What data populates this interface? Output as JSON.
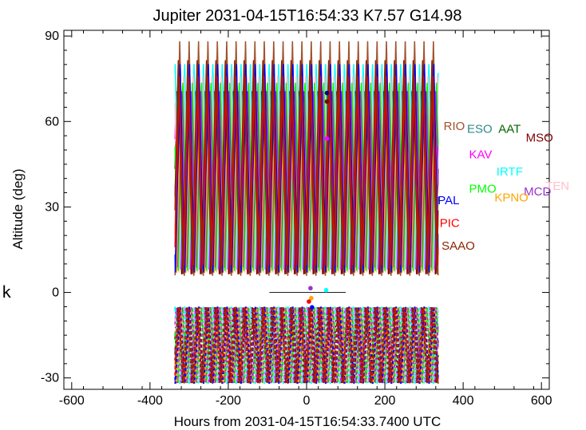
{
  "chart_data": {
    "type": "line",
    "title": "Jupiter 2031-04-15T16:54:33  K7.57  G14.98",
    "xlabel": "Hours from 2031-04-15T16:54:33.7400 UTC",
    "ylabel": "Altitude (deg)",
    "xlim": [
      -620,
      620
    ],
    "ylim": [
      -34,
      92
    ],
    "xticks": [
      -600,
      -400,
      -200,
      0,
      200,
      400,
      600
    ],
    "yticks": [
      -30,
      0,
      30,
      60,
      90
    ],
    "grid": false,
    "series_span_hours": [
      -336,
      336
    ],
    "period_hours": 24,
    "negative_altitude_floor": -32,
    "observatories": [
      {
        "name": "RIO",
        "color": "#a0522d",
        "label_x": 350,
        "label_y": 57
      },
      {
        "name": "ESO",
        "color": "#2e8b8b",
        "label_x": 410,
        "label_y": 56
      },
      {
        "name": "AAT",
        "color": "#006400",
        "label_x": 490,
        "label_y": 56
      },
      {
        "name": "MSO",
        "color": "#800000",
        "label_x": 560,
        "label_y": 53
      },
      {
        "name": "KAV",
        "color": "#ff00ff",
        "label_x": 415,
        "label_y": 47
      },
      {
        "name": "IRTF",
        "color": "#00ffff",
        "label_x": 485,
        "label_y": 41
      },
      {
        "name": "TEN",
        "color": "#ffc0cb",
        "label_x": 610,
        "label_y": 36
      },
      {
        "name": "PMO",
        "color": "#00ff00",
        "label_x": 415,
        "label_y": 35
      },
      {
        "name": "MCD",
        "color": "#9932cc",
        "label_x": 555,
        "label_y": 34
      },
      {
        "name": "KPNO",
        "color": "#ffa500",
        "label_x": 480,
        "label_y": 32
      },
      {
        "name": "PAL",
        "color": "#0000ff",
        "label_x": 335,
        "label_y": 31
      },
      {
        "name": "PIC",
        "color": "#ff0000",
        "label_x": 340,
        "label_y": 23
      },
      {
        "name": "SAAO",
        "color": "#8b2500",
        "label_x": 345,
        "label_y": 15
      }
    ],
    "marker_points": [
      {
        "x": 10,
        "y": 1.5,
        "color": "#9932cc"
      },
      {
        "x": 50,
        "y": 0.8,
        "color": "#00ffff"
      },
      {
        "x": 12,
        "y": -2.0,
        "color": "#ffa500"
      },
      {
        "x": 6,
        "y": -3.2,
        "color": "#ff0000"
      },
      {
        "x": 14,
        "y": -5.2,
        "color": "#0000ff"
      },
      {
        "x": 52,
        "y": 70,
        "color": "#000080"
      },
      {
        "x": 52,
        "y": 67,
        "color": "#800000"
      },
      {
        "x": 52,
        "y": 54,
        "color": "#ff00ff"
      }
    ],
    "reference_line": {
      "x": [
        -95,
        100
      ],
      "y": 0
    }
  },
  "stray_text": "k"
}
